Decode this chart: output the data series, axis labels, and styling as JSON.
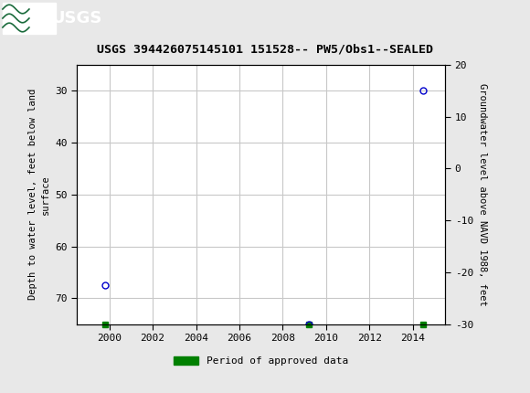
{
  "title": "USGS 394426075145101 151528-- PW5/Obs1--SEALED",
  "ylabel_left": "Depth to water level, feet below land\nsurface",
  "ylabel_right": "Groundwater level above NAVD 1988, feet",
  "ylim_left": [
    75,
    25
  ],
  "ylim_right": [
    -30,
    20
  ],
  "xlim": [
    1998.5,
    2015.5
  ],
  "xticks": [
    2000,
    2002,
    2004,
    2006,
    2008,
    2010,
    2012,
    2014
  ],
  "yticks_left": [
    30,
    40,
    50,
    60,
    70
  ],
  "yticks_right": [
    20,
    10,
    0,
    -10,
    -20,
    -30
  ],
  "blue_points_x": [
    1999.8,
    2009.2,
    2014.5
  ],
  "blue_points_y": [
    67.5,
    75.0,
    30.0
  ],
  "green_points_x": [
    1999.8,
    2009.2,
    2014.5
  ],
  "green_points_y": [
    75.0,
    75.0,
    75.0
  ],
  "header_color": "#1a6b3c",
  "grid_color": "#c8c8c8",
  "background_color": "#e8e8e8",
  "plot_bg_color": "#ffffff",
  "legend_label": "Period of approved data",
  "legend_color": "#008000",
  "point_color": "#0000cc",
  "point_facecolor": "none",
  "point_marker": "o",
  "point_size": 5,
  "green_marker": "s",
  "green_size": 4
}
